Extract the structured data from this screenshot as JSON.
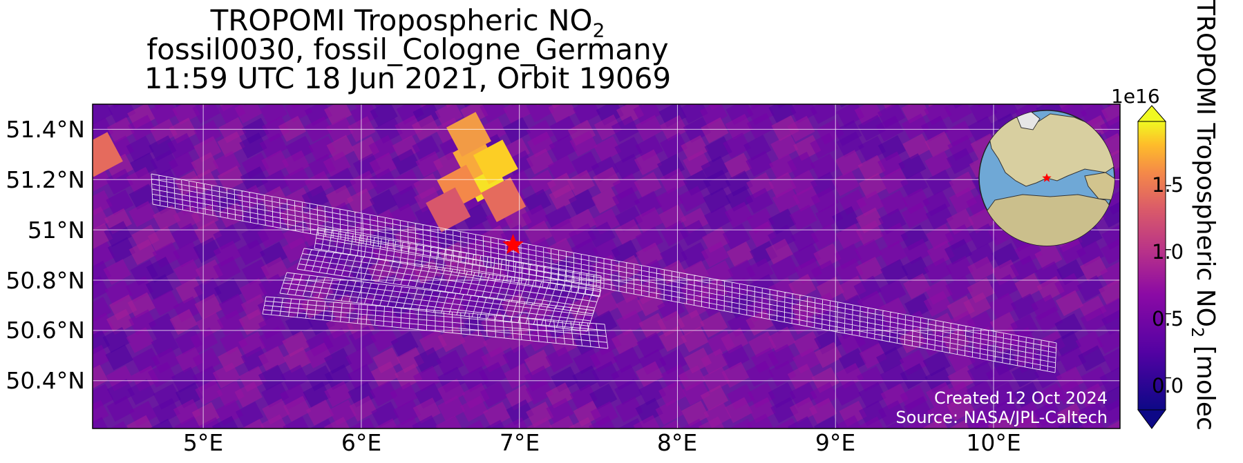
{
  "title": {
    "line1_main": "TROPOMI Tropospheric NO",
    "line1_sub": "2",
    "line2": "fossil0030, fossil_Cologne_Germany",
    "line3": "11:59 UTC 18 Jun 2021, Orbit 19069"
  },
  "axes": {
    "lon_range": [
      4.3,
      10.8
    ],
    "lat_range": [
      50.21,
      51.5
    ],
    "lon_ticks": [
      {
        "value": 5,
        "label": "5°E"
      },
      {
        "value": 6,
        "label": "6°E"
      },
      {
        "value": 7,
        "label": "7°E"
      },
      {
        "value": 8,
        "label": "8°E"
      },
      {
        "value": 9,
        "label": "9°E"
      },
      {
        "value": 10,
        "label": "10°E"
      }
    ],
    "lat_ticks": [
      {
        "value": 51.4,
        "label": "51.4°N"
      },
      {
        "value": 51.2,
        "label": "51.2°N"
      },
      {
        "value": 51.0,
        "label": "51°N"
      },
      {
        "value": 50.8,
        "label": "50.8°N"
      },
      {
        "value": 50.6,
        "label": "50.6°N"
      },
      {
        "value": 50.4,
        "label": "50.4°N"
      }
    ],
    "grid": true
  },
  "site_marker": {
    "name": "fossil_Cologne_Germany",
    "lon": 6.96,
    "lat": 50.94,
    "color": "#ff0000"
  },
  "colorbar": {
    "label_main": "TROPOMI Tropospheric NO",
    "label_sub": "2",
    "label_tail": " [molec",
    "exponent": "1e16",
    "vmin": -0.25,
    "vmax": 2.0,
    "ticks": [
      {
        "value": 0.0,
        "label": "0.0"
      },
      {
        "value": 0.5,
        "label": "0.5"
      },
      {
        "value": 1.0,
        "label": "1.0"
      },
      {
        "value": 1.5,
        "label": "1.5"
      }
    ],
    "colormap": "plasma"
  },
  "credits": {
    "created": "Created 12 Oct 2024",
    "source": "Source: NASA/JPL-Caltech"
  },
  "colors": {
    "background_field": "#6a1aa0",
    "hotspot": "#f8d030",
    "swath_outline": "#ffffff",
    "globe_ocean": "#6fa8d6",
    "globe_land": "#d8cfa0"
  }
}
